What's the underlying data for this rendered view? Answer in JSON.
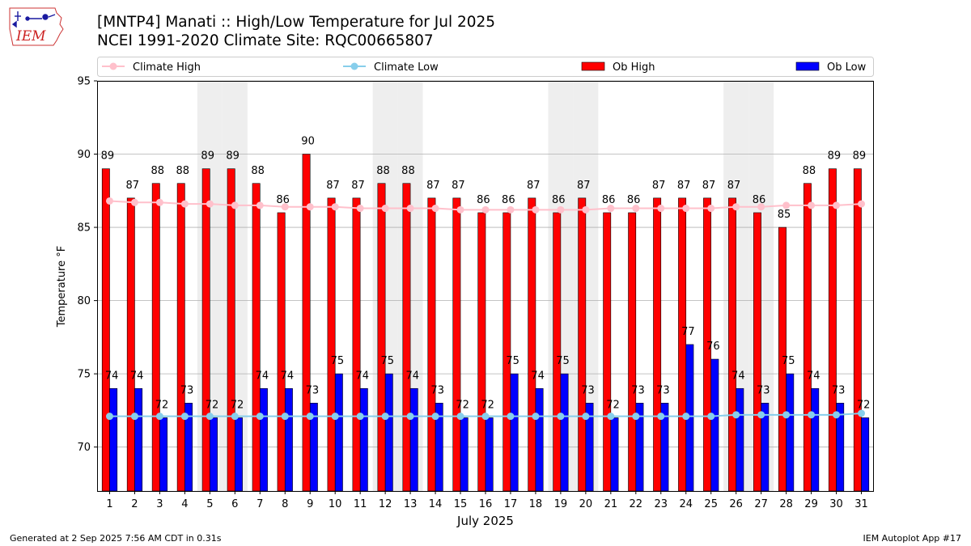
{
  "logo": {
    "text": "IEM"
  },
  "header": {
    "title": "[MNTP4] Manati :: High/Low Temperature for Jul 2025",
    "subtitle": "NCEI 1991-2020 Climate Site: RQC00665807"
  },
  "footer": {
    "left": "Generated at 2 Sep 2025 7:56 AM CDT in 0.31s",
    "right": "IEM Autoplot App #17"
  },
  "colors": {
    "ob_high": "#ff0000",
    "ob_low": "#0000ff",
    "climate_high": "#ffc0cb",
    "climate_low": "#87ceeb",
    "weekend_shade": "#eeeeee",
    "grid": "#b0b0b0"
  },
  "chart_data": {
    "type": "bar",
    "xlabel": "July 2025",
    "ylabel": "Temperature °F",
    "ylim": [
      67,
      95
    ],
    "yticks": [
      70,
      75,
      80,
      85,
      90,
      95
    ],
    "grid": "horizontal",
    "legend_placement": "top",
    "days": [
      1,
      2,
      3,
      4,
      5,
      6,
      7,
      8,
      9,
      10,
      11,
      12,
      13,
      14,
      15,
      16,
      17,
      18,
      19,
      20,
      21,
      22,
      23,
      24,
      25,
      26,
      27,
      28,
      29,
      30,
      31
    ],
    "shaded_days": [
      5,
      6,
      12,
      13,
      19,
      20,
      26,
      27
    ],
    "series": [
      {
        "name": "Ob High",
        "kind": "bar",
        "values": [
          89,
          87,
          88,
          88,
          89,
          89,
          88,
          86,
          90,
          87,
          87,
          88,
          88,
          87,
          87,
          86,
          86,
          87,
          86,
          87,
          86,
          86,
          87,
          87,
          87,
          87,
          86,
          85,
          88,
          89,
          89
        ]
      },
      {
        "name": "Ob Low",
        "kind": "bar",
        "values": [
          74,
          74,
          72,
          73,
          72,
          72,
          74,
          74,
          73,
          75,
          74,
          75,
          74,
          73,
          72,
          72,
          75,
          74,
          75,
          73,
          72,
          73,
          73,
          77,
          76,
          74,
          73,
          75,
          74,
          73,
          72
        ]
      },
      {
        "name": "Climate High",
        "kind": "line",
        "values": [
          86.8,
          86.7,
          86.7,
          86.6,
          86.6,
          86.5,
          86.5,
          86.4,
          86.4,
          86.4,
          86.3,
          86.3,
          86.3,
          86.3,
          86.2,
          86.2,
          86.2,
          86.2,
          86.2,
          86.2,
          86.3,
          86.3,
          86.3,
          86.3,
          86.3,
          86.4,
          86.4,
          86.5,
          86.5,
          86.5,
          86.6
        ]
      },
      {
        "name": "Climate Low",
        "kind": "line",
        "values": [
          72.1,
          72.1,
          72.1,
          72.1,
          72.1,
          72.1,
          72.1,
          72.1,
          72.1,
          72.1,
          72.1,
          72.1,
          72.1,
          72.1,
          72.1,
          72.1,
          72.1,
          72.1,
          72.1,
          72.1,
          72.1,
          72.1,
          72.1,
          72.1,
          72.1,
          72.2,
          72.2,
          72.2,
          72.2,
          72.2,
          72.3
        ]
      }
    ]
  }
}
